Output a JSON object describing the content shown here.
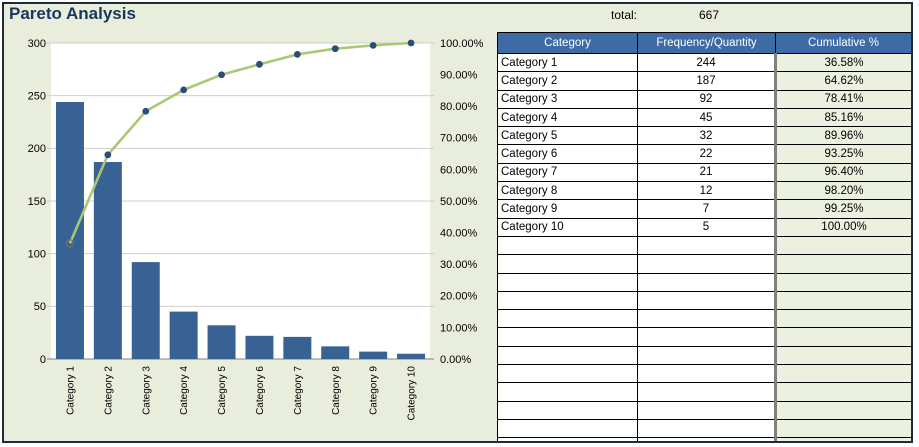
{
  "page": {
    "title": "Pareto Analysis"
  },
  "summary": {
    "total_label": "total:",
    "total_value": "667"
  },
  "colors": {
    "page_bg": "#E9EDDB",
    "sheet_border": "#1E2B38",
    "title_text": "#17375E",
    "bar_fill": "#386194",
    "line_stroke": "#A9C873",
    "marker_fill": "#2A4E78",
    "first_marker_stroke": "#6F7566",
    "gridline": "#D0CECE",
    "axis_line": "#808080",
    "plot_bg": "#FFFFFF",
    "table_header_bg": "#3E6BA5",
    "table_header_text": "#FFFFFF",
    "cumulative_col_bg": "#EBF1DE",
    "cumulative_col_border": "#808080",
    "cell_border": "#000000"
  },
  "table": {
    "headers": [
      "Category",
      "Frequency/Quantity",
      "Cumulative %"
    ],
    "rows": [
      {
        "category": "Category 1",
        "frequency": "244",
        "cumulative": "36.58%"
      },
      {
        "category": "Category 2",
        "frequency": "187",
        "cumulative": "64.62%"
      },
      {
        "category": "Category 3",
        "frequency": "92",
        "cumulative": "78.41%"
      },
      {
        "category": "Category 4",
        "frequency": "45",
        "cumulative": "85.16%"
      },
      {
        "category": "Category 5",
        "frequency": "32",
        "cumulative": "89.96%"
      },
      {
        "category": "Category 6",
        "frequency": "22",
        "cumulative": "93.25%"
      },
      {
        "category": "Category 7",
        "frequency": "21",
        "cumulative": "96.40%"
      },
      {
        "category": "Category 8",
        "frequency": "12",
        "cumulative": "98.20%"
      },
      {
        "category": "Category 9",
        "frequency": "7",
        "cumulative": "99.25%"
      },
      {
        "category": "Category 10",
        "frequency": "5",
        "cumulative": "100.00%"
      }
    ],
    "empty_row_count": 12
  },
  "chart_data": {
    "type": "bar",
    "subtype": "pareto (bar + cumulative line, dual axis)",
    "categories": [
      "Category 1",
      "Category 2",
      "Category 3",
      "Category 4",
      "Category 5",
      "Category 6",
      "Category 7",
      "Category 8",
      "Category 9",
      "Category 10"
    ],
    "series": [
      {
        "name": "Frequency/Quantity",
        "type": "bar",
        "axis": "left",
        "values": [
          244,
          187,
          92,
          45,
          32,
          22,
          21,
          12,
          7,
          5
        ]
      },
      {
        "name": "Cumulative %",
        "type": "line",
        "axis": "right",
        "values": [
          36.58,
          64.62,
          78.41,
          85.16,
          89.96,
          93.25,
          96.4,
          98.2,
          99.25,
          100.0
        ]
      }
    ],
    "left_axis": {
      "min": 0,
      "max": 300,
      "step": 50,
      "tick_labels": [
        "0",
        "50",
        "100",
        "150",
        "200",
        "250",
        "300"
      ]
    },
    "right_axis": {
      "min": 0,
      "max": 100,
      "step": 10,
      "tick_labels": [
        "0.00%",
        "10.00%",
        "20.00%",
        "30.00%",
        "40.00%",
        "50.00%",
        "60.00%",
        "70.00%",
        "80.00%",
        "90.00%",
        "100.00%"
      ]
    },
    "grid": true,
    "legend": "none",
    "title": ""
  }
}
